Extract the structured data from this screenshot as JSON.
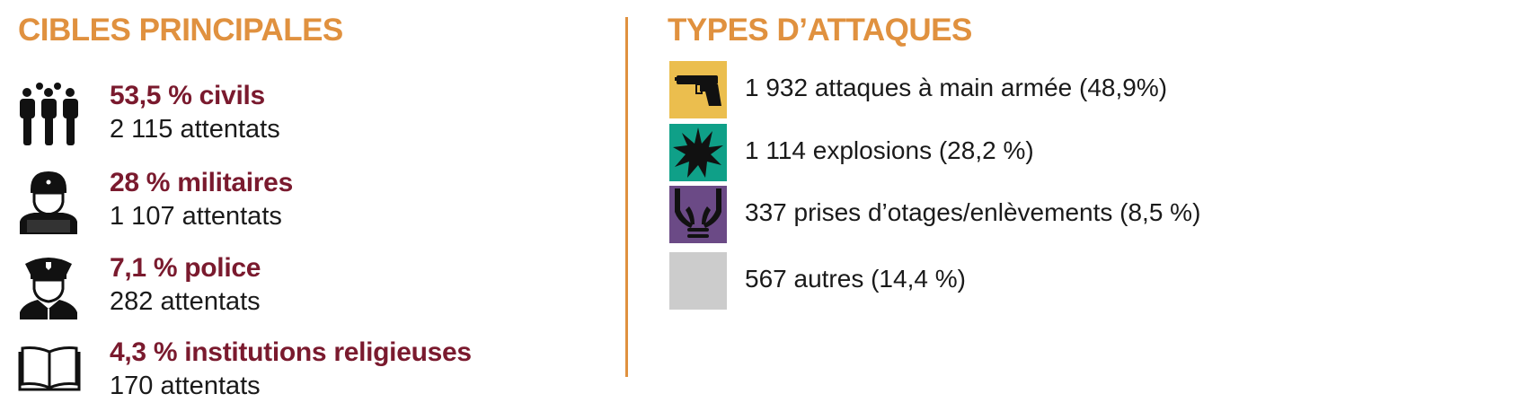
{
  "targets": {
    "title": "CIBLES PRINCIPALES",
    "items": [
      {
        "icon": "civilians-icon",
        "pct_label": "53,5 % civils",
        "count_label": "2 115 attentats"
      },
      {
        "icon": "soldier-icon",
        "pct_label": "28 % militaires",
        "count_label": "1 107 attentats"
      },
      {
        "icon": "police-officer-icon",
        "pct_label": "7,1 % police",
        "count_label": "282 attentats"
      },
      {
        "icon": "open-book-icon",
        "pct_label": "4,3 % institutions religieuses",
        "count_label": "170 attentats"
      }
    ]
  },
  "attacks": {
    "title": "TYPES D’ATTAQUES",
    "items": [
      {
        "icon": "handgun-icon",
        "color": "#EBBE4E",
        "label": "1 932 attaques à main armée (48,9%)"
      },
      {
        "icon": "explosion-icon",
        "color": "#0FA088",
        "label": "1 114 explosions (28,2 %)"
      },
      {
        "icon": "bound-hands-icon",
        "color": "#6B4A86",
        "label": "337 prises d’otages/enlèvements (8,5 %)"
      },
      {
        "icon": "none",
        "color": "#CCCCCC",
        "label": "567 autres (14,4 %)"
      }
    ]
  },
  "colors": {
    "accent": "#E0913F",
    "highlight": "#7A1A2E"
  }
}
